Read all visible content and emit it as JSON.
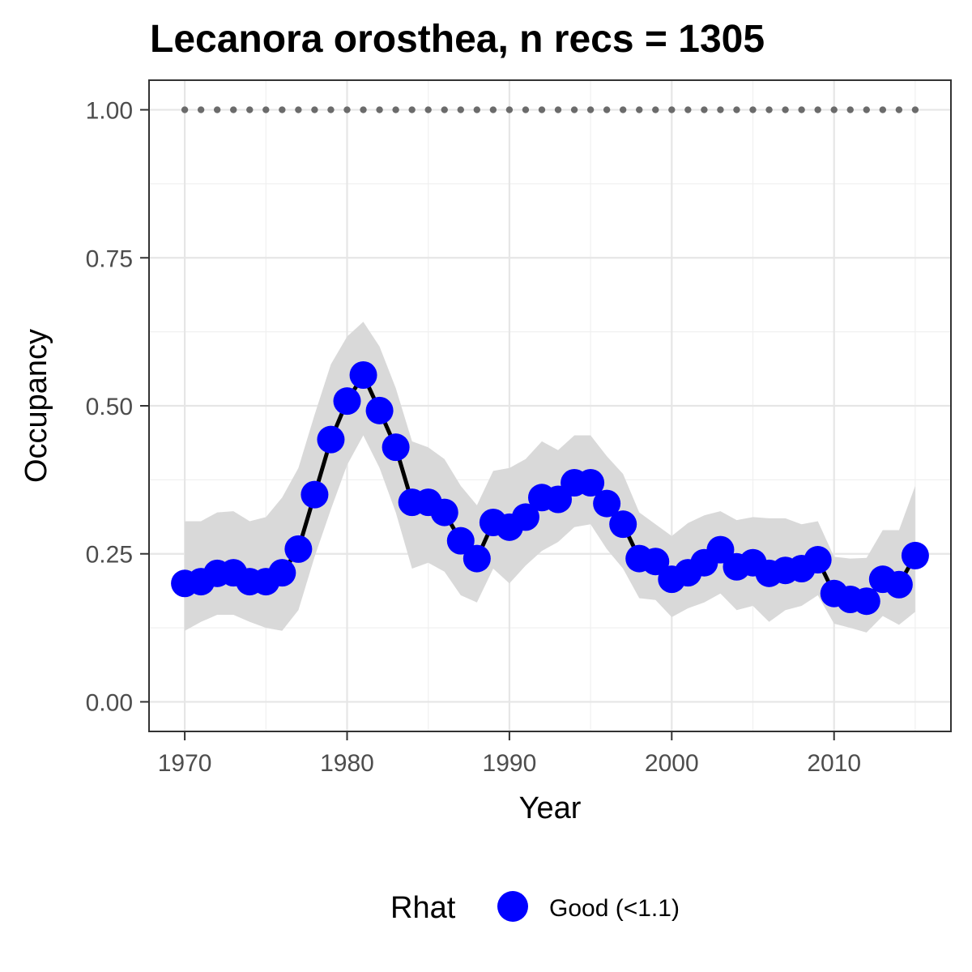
{
  "chart_data": {
    "type": "line",
    "title": "Lecanora orosthea, n recs = 1305",
    "xlabel": "Year",
    "ylabel": "Occupancy",
    "xlim": [
      1967.8,
      2017.2
    ],
    "ylim": [
      -0.05,
      1.05
    ],
    "x_ticks": [
      1970,
      1980,
      1990,
      2000,
      2010
    ],
    "x_tick_labels": [
      "1970",
      "1980",
      "1990",
      "2000",
      "2010"
    ],
    "y_ticks": [
      0,
      0.25,
      0.5,
      0.75,
      1.0
    ],
    "y_tick_labels": [
      "0.00",
      "0.25",
      "0.50",
      "0.75",
      "1.00"
    ],
    "grid": true,
    "legend": {
      "position": "bottom",
      "title": "Rhat",
      "entries": [
        {
          "label": "Good (<1.1)",
          "color": "#0000ff"
        }
      ]
    },
    "colors": {
      "points": "#0000ff",
      "line": "#000000",
      "ribbon": "#d9d9d9",
      "reference": "#6b6b6b"
    },
    "x": [
      1970,
      1971,
      1972,
      1973,
      1974,
      1975,
      1976,
      1977,
      1978,
      1979,
      1980,
      1981,
      1982,
      1983,
      1984,
      1985,
      1986,
      1987,
      1988,
      1989,
      1990,
      1991,
      1992,
      1993,
      1994,
      1995,
      1996,
      1997,
      1998,
      1999,
      2000,
      2001,
      2002,
      2003,
      2004,
      2005,
      2006,
      2007,
      2008,
      2009,
      2010,
      2011,
      2012,
      2013,
      2014,
      2015
    ],
    "series": [
      {
        "values": [
          0.2,
          0.203,
          0.217,
          0.218,
          0.203,
          0.203,
          0.218,
          0.258,
          0.35,
          0.443,
          0.508,
          0.552,
          0.492,
          0.43,
          0.337,
          0.337,
          0.32,
          0.272,
          0.242,
          0.303,
          0.295,
          0.312,
          0.345,
          0.342,
          0.37,
          0.37,
          0.335,
          0.3,
          0.242,
          0.237,
          0.207,
          0.218,
          0.235,
          0.257,
          0.228,
          0.235,
          0.217,
          0.222,
          0.225,
          0.24,
          0.183,
          0.173,
          0.17,
          0.207,
          0.198,
          0.247
        ],
        "lower": [
          0.12,
          0.135,
          0.147,
          0.147,
          0.135,
          0.125,
          0.12,
          0.155,
          0.245,
          0.325,
          0.4,
          0.45,
          0.395,
          0.32,
          0.225,
          0.235,
          0.22,
          0.18,
          0.168,
          0.225,
          0.2,
          0.23,
          0.255,
          0.27,
          0.295,
          0.3,
          0.258,
          0.225,
          0.175,
          0.172,
          0.143,
          0.158,
          0.168,
          0.183,
          0.155,
          0.162,
          0.135,
          0.155,
          0.162,
          0.18,
          0.132,
          0.125,
          0.117,
          0.145,
          0.13,
          0.152
        ],
        "upper": [
          0.305,
          0.305,
          0.32,
          0.322,
          0.305,
          0.312,
          0.345,
          0.395,
          0.485,
          0.57,
          0.617,
          0.642,
          0.6,
          0.53,
          0.44,
          0.43,
          0.41,
          0.365,
          0.332,
          0.39,
          0.395,
          0.41,
          0.44,
          0.425,
          0.45,
          0.45,
          0.415,
          0.385,
          0.32,
          0.3,
          0.28,
          0.302,
          0.315,
          0.322,
          0.307,
          0.312,
          0.31,
          0.31,
          0.3,
          0.305,
          0.245,
          0.242,
          0.243,
          0.29,
          0.29,
          0.365
        ]
      }
    ],
    "reference": {
      "y": 1.0
    }
  }
}
